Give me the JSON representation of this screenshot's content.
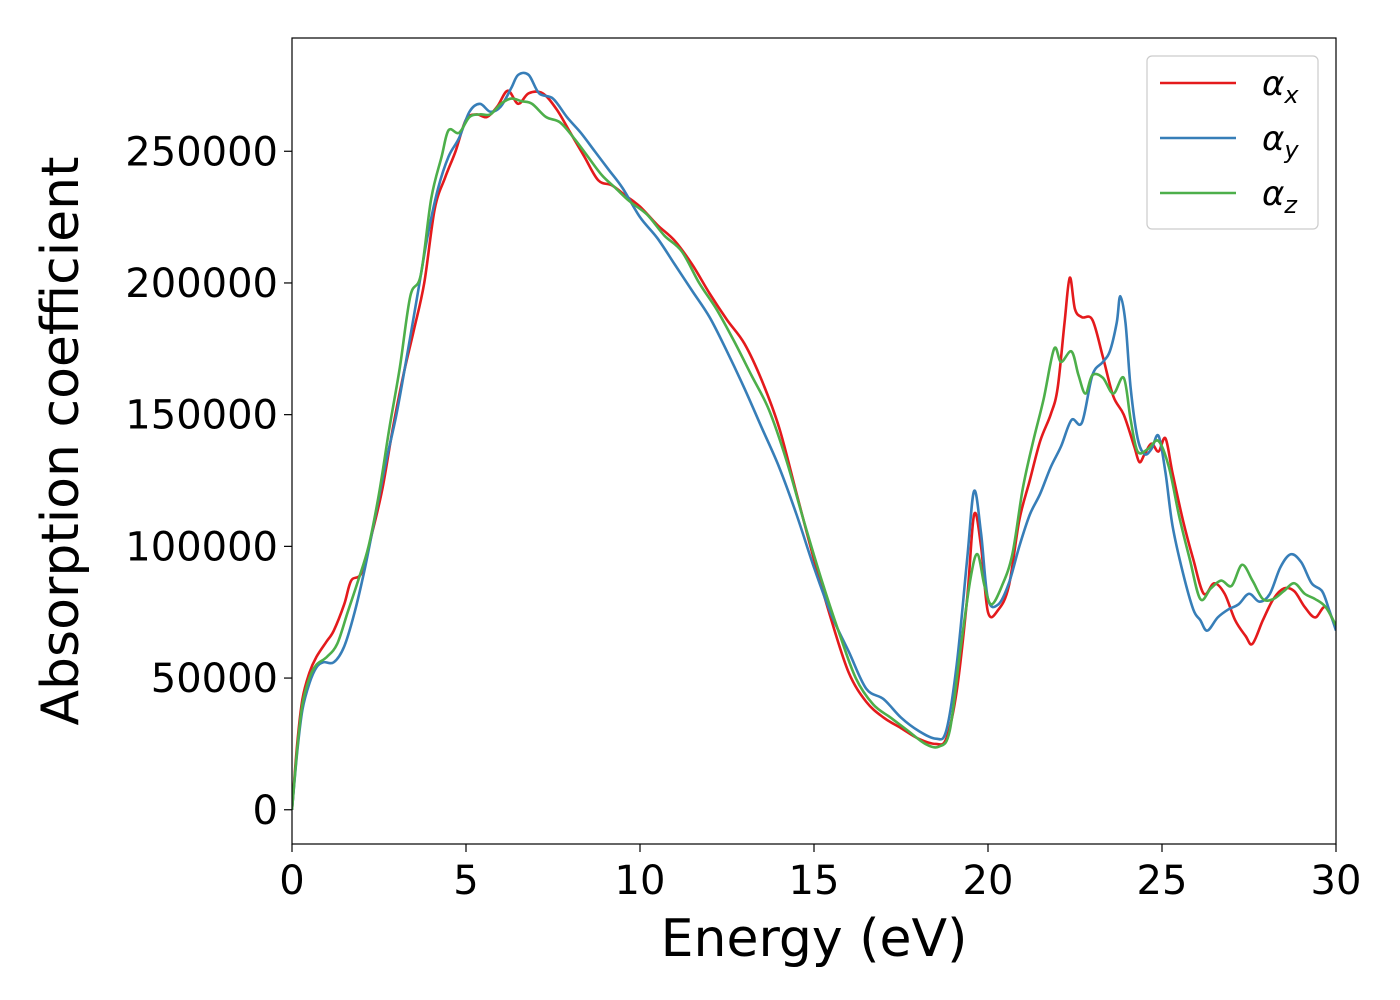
{
  "chart_data": {
    "type": "line",
    "xlabel": "Energy (eV)",
    "ylabel": "Absorption coefficient",
    "xlim": [
      0,
      30
    ],
    "ylim": [
      -13000,
      293000
    ],
    "xticks": [
      0,
      5,
      10,
      15,
      20,
      25,
      30
    ],
    "yticks": [
      0,
      50000,
      100000,
      150000,
      200000,
      250000
    ],
    "grid": false,
    "legend_position": "top-right",
    "series": [
      {
        "name": "αx",
        "symbol": "α",
        "subscript": "x",
        "color": "#e41a1c",
        "points": [
          [
            0,
            0
          ],
          [
            0.15,
            25000
          ],
          [
            0.3,
            42000
          ],
          [
            0.5,
            52000
          ],
          [
            0.7,
            58000
          ],
          [
            1.0,
            64000
          ],
          [
            1.2,
            68000
          ],
          [
            1.5,
            78000
          ],
          [
            1.7,
            87000
          ],
          [
            2.0,
            90000
          ],
          [
            2.3,
            105000
          ],
          [
            2.6,
            122000
          ],
          [
            2.9,
            145000
          ],
          [
            3.2,
            165000
          ],
          [
            3.5,
            182000
          ],
          [
            3.8,
            200000
          ],
          [
            4.1,
            228000
          ],
          [
            4.4,
            240000
          ],
          [
            4.7,
            250000
          ],
          [
            5.0,
            262000
          ],
          [
            5.3,
            264000
          ],
          [
            5.6,
            263000
          ],
          [
            5.9,
            267000
          ],
          [
            6.2,
            273000
          ],
          [
            6.5,
            268000
          ],
          [
            6.8,
            272000
          ],
          [
            7.2,
            272000
          ],
          [
            7.6,
            266000
          ],
          [
            8.0,
            257000
          ],
          [
            8.4,
            248000
          ],
          [
            8.8,
            239000
          ],
          [
            9.2,
            237000
          ],
          [
            9.6,
            233000
          ],
          [
            10.0,
            229000
          ],
          [
            10.5,
            222000
          ],
          [
            11.0,
            216000
          ],
          [
            11.5,
            207000
          ],
          [
            12.0,
            196000
          ],
          [
            12.5,
            186000
          ],
          [
            13.0,
            177000
          ],
          [
            13.5,
            163000
          ],
          [
            14.0,
            145000
          ],
          [
            14.5,
            120000
          ],
          [
            15.0,
            95000
          ],
          [
            15.5,
            72000
          ],
          [
            16.0,
            52000
          ],
          [
            16.5,
            41000
          ],
          [
            17.0,
            35000
          ],
          [
            17.5,
            31000
          ],
          [
            18.0,
            27000
          ],
          [
            18.5,
            25000
          ],
          [
            18.8,
            27000
          ],
          [
            19.1,
            45000
          ],
          [
            19.4,
            80000
          ],
          [
            19.6,
            112000
          ],
          [
            19.8,
            100000
          ],
          [
            20.0,
            75000
          ],
          [
            20.3,
            76000
          ],
          [
            20.6,
            85000
          ],
          [
            20.9,
            110000
          ],
          [
            21.2,
            125000
          ],
          [
            21.5,
            140000
          ],
          [
            21.8,
            150000
          ],
          [
            22.0,
            160000
          ],
          [
            22.2,
            185000
          ],
          [
            22.35,
            202000
          ],
          [
            22.5,
            190000
          ],
          [
            22.7,
            187000
          ],
          [
            23.0,
            186000
          ],
          [
            23.3,
            172000
          ],
          [
            23.6,
            157000
          ],
          [
            23.9,
            150000
          ],
          [
            24.2,
            138000
          ],
          [
            24.35,
            132000
          ],
          [
            24.5,
            135000
          ],
          [
            24.7,
            139000
          ],
          [
            24.9,
            136000
          ],
          [
            25.1,
            141000
          ],
          [
            25.3,
            128000
          ],
          [
            25.6,
            110000
          ],
          [
            25.9,
            95000
          ],
          [
            26.2,
            82000
          ],
          [
            26.5,
            86000
          ],
          [
            26.8,
            82000
          ],
          [
            27.1,
            72000
          ],
          [
            27.4,
            66000
          ],
          [
            27.6,
            63000
          ],
          [
            27.9,
            72000
          ],
          [
            28.2,
            80000
          ],
          [
            28.5,
            84000
          ],
          [
            28.8,
            83000
          ],
          [
            29.1,
            77000
          ],
          [
            29.4,
            73000
          ],
          [
            29.7,
            77000
          ],
          [
            30.0,
            69000
          ]
        ]
      },
      {
        "name": "αy",
        "symbol": "α",
        "subscript": "y",
        "color": "#377eb8",
        "points": [
          [
            0,
            0
          ],
          [
            0.15,
            22000
          ],
          [
            0.3,
            38000
          ],
          [
            0.5,
            48000
          ],
          [
            0.7,
            54000
          ],
          [
            0.9,
            56000
          ],
          [
            1.2,
            56000
          ],
          [
            1.5,
            62000
          ],
          [
            1.8,
            75000
          ],
          [
            2.1,
            92000
          ],
          [
            2.4,
            112000
          ],
          [
            2.7,
            132000
          ],
          [
            3.0,
            150000
          ],
          [
            3.3,
            172000
          ],
          [
            3.6,
            195000
          ],
          [
            3.9,
            218000
          ],
          [
            4.2,
            236000
          ],
          [
            4.5,
            248000
          ],
          [
            4.8,
            255000
          ],
          [
            5.1,
            265000
          ],
          [
            5.4,
            268000
          ],
          [
            5.7,
            265000
          ],
          [
            6.0,
            267000
          ],
          [
            6.3,
            274000
          ],
          [
            6.5,
            279000
          ],
          [
            6.8,
            279000
          ],
          [
            7.1,
            272000
          ],
          [
            7.5,
            270000
          ],
          [
            7.9,
            263000
          ],
          [
            8.3,
            257000
          ],
          [
            8.7,
            250000
          ],
          [
            9.1,
            243000
          ],
          [
            9.5,
            236000
          ],
          [
            10.0,
            225000
          ],
          [
            10.5,
            217000
          ],
          [
            11.0,
            207000
          ],
          [
            11.5,
            197000
          ],
          [
            12.0,
            187000
          ],
          [
            12.5,
            174000
          ],
          [
            13.0,
            160000
          ],
          [
            13.5,
            145000
          ],
          [
            14.0,
            130000
          ],
          [
            14.5,
            112000
          ],
          [
            15.0,
            92000
          ],
          [
            15.5,
            74000
          ],
          [
            16.0,
            60000
          ],
          [
            16.5,
            46000
          ],
          [
            17.0,
            42000
          ],
          [
            17.5,
            35000
          ],
          [
            18.0,
            30000
          ],
          [
            18.5,
            27000
          ],
          [
            18.8,
            30000
          ],
          [
            19.1,
            55000
          ],
          [
            19.4,
            95000
          ],
          [
            19.6,
            121000
          ],
          [
            19.8,
            105000
          ],
          [
            20.0,
            80000
          ],
          [
            20.3,
            78000
          ],
          [
            20.6,
            86000
          ],
          [
            20.9,
            100000
          ],
          [
            21.2,
            112000
          ],
          [
            21.5,
            120000
          ],
          [
            21.8,
            130000
          ],
          [
            22.1,
            138000
          ],
          [
            22.4,
            148000
          ],
          [
            22.7,
            147000
          ],
          [
            23.0,
            165000
          ],
          [
            23.3,
            170000
          ],
          [
            23.5,
            174000
          ],
          [
            23.7,
            185000
          ],
          [
            23.8,
            195000
          ],
          [
            23.95,
            185000
          ],
          [
            24.1,
            160000
          ],
          [
            24.3,
            141000
          ],
          [
            24.5,
            135000
          ],
          [
            24.7,
            137000
          ],
          [
            24.9,
            142000
          ],
          [
            25.1,
            128000
          ],
          [
            25.3,
            108000
          ],
          [
            25.6,
            90000
          ],
          [
            25.9,
            76000
          ],
          [
            26.1,
            72000
          ],
          [
            26.3,
            68000
          ],
          [
            26.6,
            73000
          ],
          [
            26.9,
            76000
          ],
          [
            27.2,
            78000
          ],
          [
            27.5,
            82000
          ],
          [
            27.8,
            79000
          ],
          [
            28.1,
            82000
          ],
          [
            28.4,
            92000
          ],
          [
            28.7,
            97000
          ],
          [
            29.0,
            94000
          ],
          [
            29.3,
            86000
          ],
          [
            29.6,
            83000
          ],
          [
            29.8,
            76000
          ],
          [
            30.0,
            68000
          ]
        ]
      },
      {
        "name": "αz",
        "symbol": "α",
        "subscript": "z",
        "color": "#4daf4a",
        "points": [
          [
            0,
            0
          ],
          [
            0.15,
            23000
          ],
          [
            0.3,
            40000
          ],
          [
            0.5,
            50000
          ],
          [
            0.7,
            55000
          ],
          [
            1.0,
            58000
          ],
          [
            1.3,
            63000
          ],
          [
            1.6,
            75000
          ],
          [
            1.9,
            87000
          ],
          [
            2.2,
            100000
          ],
          [
            2.5,
            120000
          ],
          [
            2.8,
            145000
          ],
          [
            3.1,
            168000
          ],
          [
            3.4,
            195000
          ],
          [
            3.7,
            203000
          ],
          [
            4.0,
            232000
          ],
          [
            4.3,
            248000
          ],
          [
            4.5,
            258000
          ],
          [
            4.8,
            257000
          ],
          [
            5.1,
            263000
          ],
          [
            5.4,
            264000
          ],
          [
            5.7,
            264000
          ],
          [
            6.0,
            268000
          ],
          [
            6.3,
            270000
          ],
          [
            6.6,
            269000
          ],
          [
            6.9,
            268000
          ],
          [
            7.3,
            263000
          ],
          [
            7.7,
            261000
          ],
          [
            8.1,
            255000
          ],
          [
            8.5,
            248000
          ],
          [
            8.9,
            241000
          ],
          [
            9.3,
            236000
          ],
          [
            9.7,
            231000
          ],
          [
            10.2,
            226000
          ],
          [
            10.7,
            218000
          ],
          [
            11.2,
            212000
          ],
          [
            11.7,
            200000
          ],
          [
            12.2,
            190000
          ],
          [
            12.7,
            178000
          ],
          [
            13.2,
            165000
          ],
          [
            13.7,
            152000
          ],
          [
            14.2,
            133000
          ],
          [
            14.7,
            110000
          ],
          [
            15.2,
            88000
          ],
          [
            15.7,
            68000
          ],
          [
            16.2,
            50000
          ],
          [
            16.7,
            40000
          ],
          [
            17.2,
            35000
          ],
          [
            17.7,
            30000
          ],
          [
            18.2,
            25000
          ],
          [
            18.6,
            24000
          ],
          [
            18.9,
            30000
          ],
          [
            19.2,
            60000
          ],
          [
            19.5,
            88000
          ],
          [
            19.7,
            97000
          ],
          [
            19.9,
            85000
          ],
          [
            20.1,
            78000
          ],
          [
            20.4,
            85000
          ],
          [
            20.7,
            97000
          ],
          [
            21.0,
            122000
          ],
          [
            21.3,
            140000
          ],
          [
            21.6,
            156000
          ],
          [
            21.9,
            175000
          ],
          [
            22.1,
            170000
          ],
          [
            22.4,
            174000
          ],
          [
            22.6,
            165000
          ],
          [
            22.8,
            158000
          ],
          [
            23.0,
            165000
          ],
          [
            23.3,
            164000
          ],
          [
            23.6,
            158000
          ],
          [
            23.9,
            164000
          ],
          [
            24.1,
            148000
          ],
          [
            24.3,
            136000
          ],
          [
            24.6,
            137000
          ],
          [
            24.9,
            140000
          ],
          [
            25.2,
            130000
          ],
          [
            25.5,
            111000
          ],
          [
            25.8,
            95000
          ],
          [
            26.1,
            80000
          ],
          [
            26.4,
            84000
          ],
          [
            26.7,
            87000
          ],
          [
            27.0,
            85000
          ],
          [
            27.3,
            93000
          ],
          [
            27.6,
            87000
          ],
          [
            27.9,
            80000
          ],
          [
            28.2,
            80000
          ],
          [
            28.5,
            83000
          ],
          [
            28.8,
            86000
          ],
          [
            29.1,
            82000
          ],
          [
            29.4,
            80000
          ],
          [
            29.7,
            77000
          ],
          [
            30.0,
            70000
          ]
        ]
      }
    ]
  }
}
